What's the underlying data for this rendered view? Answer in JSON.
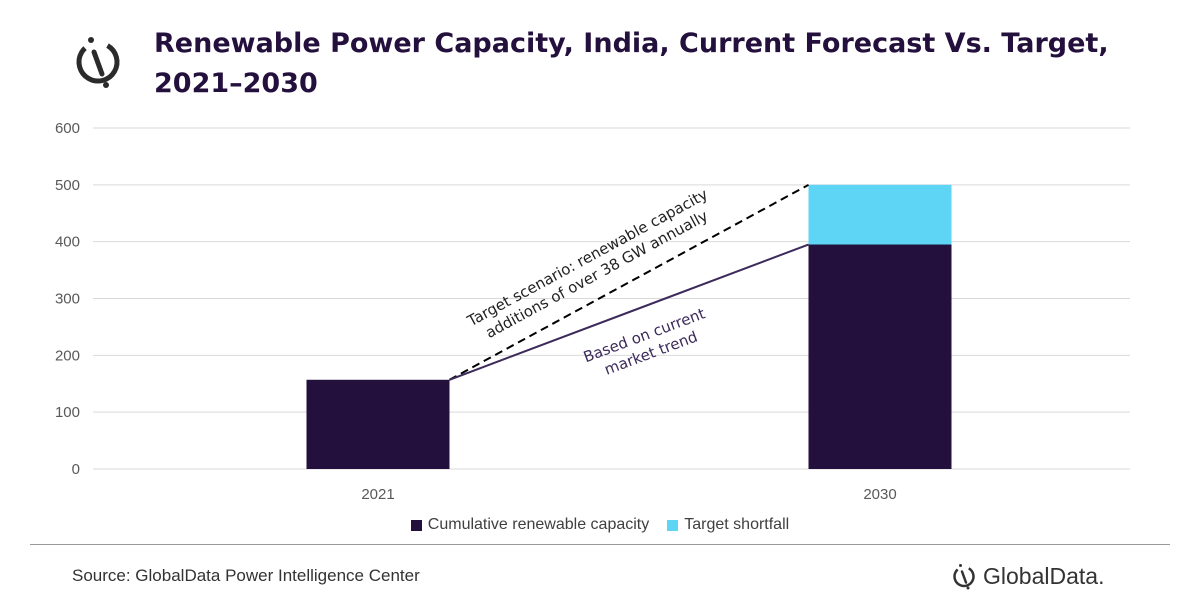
{
  "chart_data": {
    "type": "bar",
    "stacked": true,
    "title": "Renewable Power Capacity, India, Current Forecast Vs. Target, 2021–2030",
    "categories": [
      "2021",
      "2030"
    ],
    "series": [
      {
        "name": "Cumulative renewable capacity",
        "values": [
          157,
          395
        ],
        "color": "#24103d"
      },
      {
        "name": "Target shortfall",
        "values": [
          0,
          105
        ],
        "color": "#5ed5f5"
      }
    ],
    "ylim": [
      0,
      600
    ],
    "yticks": [
      0,
      100,
      200,
      300,
      400,
      500,
      600
    ],
    "grid": true,
    "legend_position": "bottom",
    "lines": [
      {
        "style": "dashed",
        "from": [
          "2021",
          157
        ],
        "to": [
          "2030",
          500
        ],
        "label": [
          "Target scenario: renewable capacity",
          "additions of over 38 GW annually"
        ],
        "color": "#000000"
      },
      {
        "style": "solid",
        "from": [
          "2021",
          157
        ],
        "to": [
          "2030",
          395
        ],
        "label": [
          "Based on current",
          "market trend"
        ],
        "color": "#3b2a5a"
      }
    ]
  },
  "footer": {
    "source": "Source: GlobalData Power Intelligence Center",
    "brand": "GlobalData."
  }
}
